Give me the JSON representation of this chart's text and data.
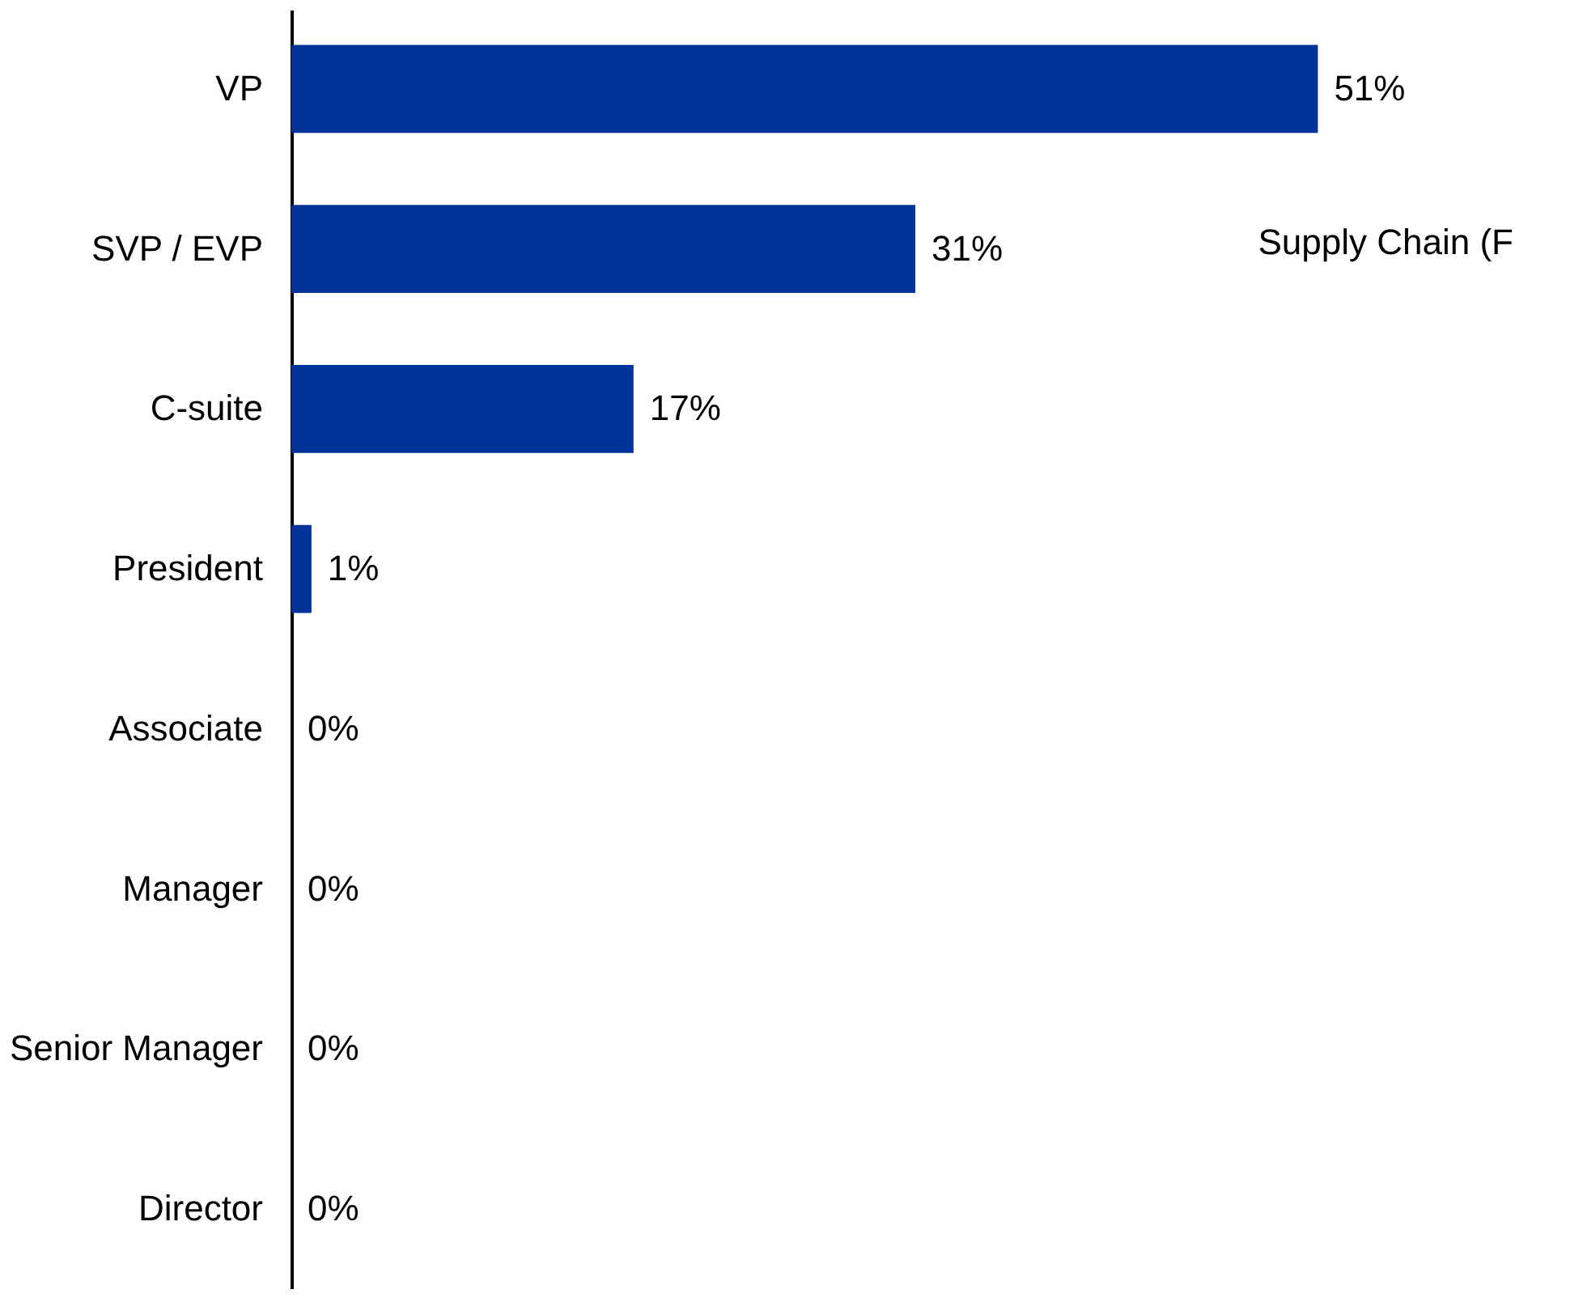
{
  "chart_data": {
    "type": "bar",
    "orientation": "horizontal",
    "categories": [
      "VP",
      "SVP / EVP",
      "C-suite",
      "President",
      "Associate",
      "Manager",
      "Senior Manager",
      "Director"
    ],
    "values": [
      51,
      31,
      17,
      1,
      0,
      0,
      0,
      0
    ],
    "color": "#003399",
    "value_labels": [
      "51%",
      "31%",
      "17%",
      "1%",
      "0%",
      "0%",
      "0%",
      "0%"
    ],
    "annotations": [
      "Supply Chain (F"
    ],
    "tick_labels": "y"
  }
}
